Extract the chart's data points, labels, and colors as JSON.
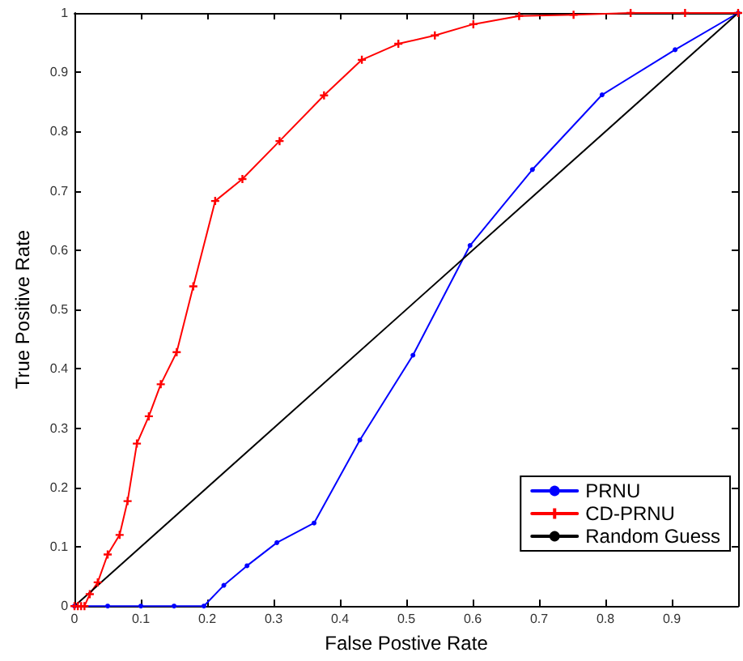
{
  "chart_data": {
    "type": "line",
    "xlabel": "False Postive Rate",
    "ylabel": "True Positive Rate",
    "xlim": [
      0,
      1
    ],
    "ylim": [
      0,
      1
    ],
    "xticks": [
      0,
      0.1,
      0.2,
      0.3,
      0.4,
      0.5,
      0.6,
      0.7,
      0.8,
      0.9,
      {
        "value": 1,
        "label": null
      }
    ],
    "yticks": [
      0,
      0.1,
      0.2,
      0.3,
      0.4,
      0.5,
      0.6,
      0.7,
      0.8,
      0.9,
      1
    ],
    "grid": false,
    "legend": "bottom right",
    "series": [
      {
        "name": "PRNU",
        "color": "#0000ff",
        "marker": "circle",
        "x": [
          0,
          0.05,
          0.1,
          0.15,
          0.195,
          0.225,
          0.26,
          0.305,
          0.361,
          0.43,
          0.51,
          0.596,
          0.69,
          0.795,
          0.905,
          1
        ],
        "values": [
          0,
          0,
          0,
          0,
          0,
          0.035,
          0.068,
          0.107,
          0.14,
          0.28,
          0.423,
          0.608,
          0.736,
          0.862,
          0.938,
          1
        ]
      },
      {
        "name": "CD-PRNU",
        "color": "#ff0000",
        "marker": "cross",
        "x": [
          0,
          0.005,
          0.01,
          0.015,
          0.023,
          0.035,
          0.05,
          0.068,
          0.08,
          0.094,
          0.112,
          0.13,
          0.154,
          0.179,
          0.212,
          0.253,
          0.309,
          0.376,
          0.433,
          0.488,
          0.543,
          0.601,
          0.67,
          0.752,
          0.838,
          0.92,
          1
        ],
        "values": [
          0,
          0,
          0,
          0,
          0.02,
          0.04,
          0.087,
          0.12,
          0.177,
          0.274,
          0.32,
          0.374,
          0.428,
          0.539,
          0.683,
          0.72,
          0.784,
          0.861,
          0.921,
          0.948,
          0.962,
          0.981,
          0.995,
          0.997,
          1,
          1,
          1
        ]
      },
      {
        "name": "Random Guess",
        "color": "#000000",
        "marker": "none",
        "x": [
          0,
          1
        ],
        "values": [
          0,
          1
        ]
      }
    ]
  }
}
